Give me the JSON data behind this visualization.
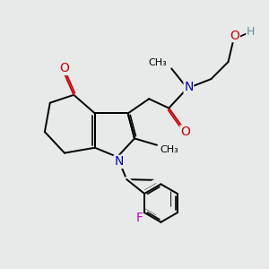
{
  "bg_color": "#e8eaea",
  "atom_colors": {
    "C": "#000000",
    "N": "#0000cc",
    "O": "#cc0000",
    "F": "#cc00cc",
    "H": "#5f8fa0"
  },
  "lw": 1.4,
  "fs": 8.5,
  "xlim": [
    0,
    10
  ],
  "ylim": [
    0,
    10
  ],
  "dbo": 0.07
}
